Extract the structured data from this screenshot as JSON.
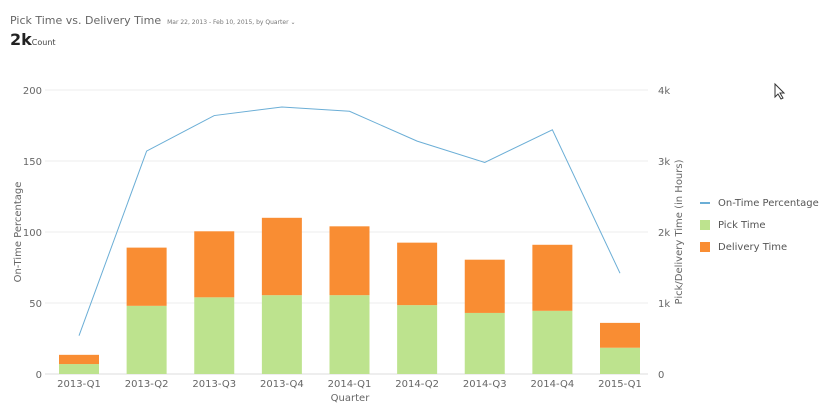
{
  "header": {
    "title": "Pick Time vs. Delivery Time",
    "range": "Mar 22, 2013 - Feb 10, 2015, by Quarter",
    "total": "2k",
    "total_unit": "Count"
  },
  "chart_data": {
    "type": "bar+line",
    "categories": [
      "2013-Q1",
      "2013-Q2",
      "2013-Q3",
      "2013-Q4",
      "2014-Q1",
      "2014-Q2",
      "2014-Q3",
      "2014-Q4",
      "2015-Q1"
    ],
    "xlabel": "Quarter",
    "ylabel_left": "On-Time Percentage",
    "ylim_left": [
      0,
      200
    ],
    "yticks_left": [
      "0",
      "50",
      "100",
      "150",
      "200"
    ],
    "ylabel_right": "Pick/Delivery Time (in Hours)",
    "ylim_right": [
      0,
      4000
    ],
    "yticks_right": [
      "0",
      "1k",
      "2k",
      "3k",
      "4k"
    ],
    "series": [
      {
        "name": "On-Time Percentage",
        "type": "line",
        "axis": "left",
        "color": "#6baed6",
        "values": [
          27,
          157,
          182,
          188,
          185,
          164,
          149,
          172,
          71
        ]
      },
      {
        "name": "Pick Time",
        "type": "bar",
        "stack": true,
        "axis": "right",
        "color": "#bde38e",
        "values": [
          140,
          960,
          1080,
          1110,
          1110,
          970,
          860,
          890,
          370
        ]
      },
      {
        "name": "Delivery Time",
        "type": "bar",
        "stack": true,
        "axis": "right",
        "color": "#f98d33",
        "values": [
          130,
          820,
          930,
          1090,
          970,
          880,
          750,
          930,
          350
        ]
      }
    ],
    "grid": true,
    "legend": "right"
  }
}
